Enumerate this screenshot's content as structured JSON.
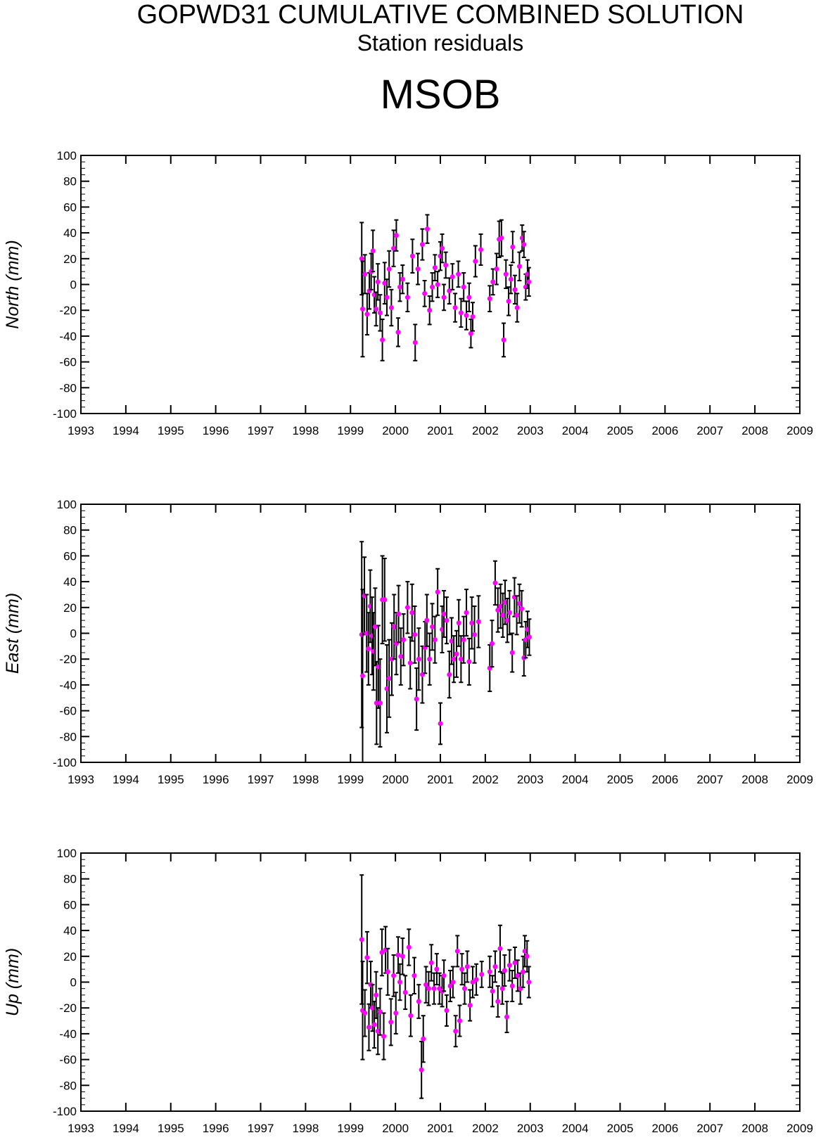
{
  "header": {
    "title": "GOPWD31 CUMULATIVE COMBINED SOLUTION",
    "subtitle": "Station residuals",
    "station": "MSOB"
  },
  "colors": {
    "point": "#ff00ff",
    "errorbar": "#000000",
    "axes": "#000000"
  },
  "chart_data": [
    {
      "type": "scatter",
      "ylabel": "North (mm)",
      "xlim": [
        1993,
        2009
      ],
      "ylim": [
        -100,
        100
      ],
      "xticks": [
        1993,
        1994,
        1995,
        1996,
        1997,
        1998,
        1999,
        2000,
        2001,
        2002,
        2003,
        2004,
        2005,
        2006,
        2007,
        2008,
        2009
      ],
      "yticks": [
        -100,
        -80,
        -60,
        -40,
        -20,
        0,
        20,
        40,
        60,
        80,
        100
      ],
      "grid": false,
      "points": [
        {
          "x": 1999.25,
          "y": 20,
          "e": 28
        },
        {
          "x": 1999.27,
          "y": -19,
          "e": 37
        },
        {
          "x": 1999.32,
          "y": 8,
          "e": 15
        },
        {
          "x": 1999.37,
          "y": -23,
          "e": 16
        },
        {
          "x": 1999.42,
          "y": -5,
          "e": 14
        },
        {
          "x": 1999.46,
          "y": 10,
          "e": 14
        },
        {
          "x": 1999.5,
          "y": 26,
          "e": 16
        },
        {
          "x": 1999.53,
          "y": -8,
          "e": 14
        },
        {
          "x": 1999.57,
          "y": -19,
          "e": 13
        },
        {
          "x": 1999.61,
          "y": 2,
          "e": 14
        },
        {
          "x": 1999.66,
          "y": -22,
          "e": 14
        },
        {
          "x": 1999.71,
          "y": -43,
          "e": 16
        },
        {
          "x": 1999.76,
          "y": 1,
          "e": 16
        },
        {
          "x": 1999.81,
          "y": -10,
          "e": 14
        },
        {
          "x": 1999.86,
          "y": 12,
          "e": 14
        },
        {
          "x": 1999.91,
          "y": -18,
          "e": 14
        },
        {
          "x": 1999.96,
          "y": 28,
          "e": 14
        },
        {
          "x": 2000.02,
          "y": 38,
          "e": 12
        },
        {
          "x": 2000.06,
          "y": -37,
          "e": 11
        },
        {
          "x": 2000.1,
          "y": -2,
          "e": 11
        },
        {
          "x": 2000.16,
          "y": 4,
          "e": 11
        },
        {
          "x": 2000.27,
          "y": -10,
          "e": 11
        },
        {
          "x": 2000.38,
          "y": 22,
          "e": 13
        },
        {
          "x": 2000.44,
          "y": -45,
          "e": 14
        },
        {
          "x": 2000.5,
          "y": 12,
          "e": 12
        },
        {
          "x": 2000.6,
          "y": 31,
          "e": 12
        },
        {
          "x": 2000.65,
          "y": -7,
          "e": 10
        },
        {
          "x": 2000.71,
          "y": 43,
          "e": 11
        },
        {
          "x": 2000.76,
          "y": -20,
          "e": 11
        },
        {
          "x": 2000.82,
          "y": -2,
          "e": 11
        },
        {
          "x": 2000.88,
          "y": 13,
          "e": 10
        },
        {
          "x": 2000.94,
          "y": 0,
          "e": 10
        },
        {
          "x": 2001.0,
          "y": 22,
          "e": 11
        },
        {
          "x": 2001.04,
          "y": 28,
          "e": 11
        },
        {
          "x": 2001.08,
          "y": -10,
          "e": 10
        },
        {
          "x": 2001.12,
          "y": 15,
          "e": 10
        },
        {
          "x": 2001.2,
          "y": -5,
          "e": 10
        },
        {
          "x": 2001.27,
          "y": 6,
          "e": 10
        },
        {
          "x": 2001.33,
          "y": -18,
          "e": 11
        },
        {
          "x": 2001.4,
          "y": 8,
          "e": 10
        },
        {
          "x": 2001.46,
          "y": -22,
          "e": 11
        },
        {
          "x": 2001.52,
          "y": -2,
          "e": 11
        },
        {
          "x": 2001.58,
          "y": -24,
          "e": 11
        },
        {
          "x": 2001.64,
          "y": -10,
          "e": 11
        },
        {
          "x": 2001.68,
          "y": -38,
          "e": 11
        },
        {
          "x": 2001.72,
          "y": -25,
          "e": 11
        },
        {
          "x": 2001.78,
          "y": 18,
          "e": 12
        },
        {
          "x": 2001.9,
          "y": 27,
          "e": 12
        },
        {
          "x": 2002.1,
          "y": -11,
          "e": 10
        },
        {
          "x": 2002.17,
          "y": 2,
          "e": 10
        },
        {
          "x": 2002.25,
          "y": 12,
          "e": 12
        },
        {
          "x": 2002.31,
          "y": 35,
          "e": 14
        },
        {
          "x": 2002.36,
          "y": 36,
          "e": 14
        },
        {
          "x": 2002.41,
          "y": -43,
          "e": 13
        },
        {
          "x": 2002.46,
          "y": 8,
          "e": 11
        },
        {
          "x": 2002.52,
          "y": -13,
          "e": 11
        },
        {
          "x": 2002.57,
          "y": 4,
          "e": 11
        },
        {
          "x": 2002.61,
          "y": 29,
          "e": 12
        },
        {
          "x": 2002.66,
          "y": -4,
          "e": 11
        },
        {
          "x": 2002.71,
          "y": -18,
          "e": 11
        },
        {
          "x": 2002.76,
          "y": 14,
          "e": 11
        },
        {
          "x": 2002.82,
          "y": 36,
          "e": 10
        },
        {
          "x": 2002.86,
          "y": 31,
          "e": 10
        },
        {
          "x": 2002.9,
          "y": -2,
          "e": 10
        },
        {
          "x": 2002.94,
          "y": 8,
          "e": 11
        },
        {
          "x": 2002.97,
          "y": 2,
          "e": 11
        }
      ]
    },
    {
      "type": "scatter",
      "ylabel": "East (mm)",
      "xlim": [
        1993,
        2009
      ],
      "ylim": [
        -100,
        100
      ],
      "xticks": [
        1993,
        1994,
        1995,
        1996,
        1997,
        1998,
        1999,
        2000,
        2001,
        2002,
        2003,
        2004,
        2005,
        2006,
        2007,
        2008,
        2009
      ],
      "yticks": [
        -100,
        -80,
        -60,
        -40,
        -20,
        0,
        20,
        40,
        60,
        80,
        100
      ],
      "grid": false,
      "points": [
        {
          "x": 1999.25,
          "y": -1,
          "e": 72
        },
        {
          "x": 1999.27,
          "y": -33,
          "e": 67
        },
        {
          "x": 1999.31,
          "y": 29,
          "e": 30
        },
        {
          "x": 1999.36,
          "y": 0,
          "e": 30
        },
        {
          "x": 1999.4,
          "y": -12,
          "e": 28
        },
        {
          "x": 1999.44,
          "y": 21,
          "e": 28
        },
        {
          "x": 1999.48,
          "y": -2,
          "e": 30
        },
        {
          "x": 1999.51,
          "y": -14,
          "e": 30
        },
        {
          "x": 1999.55,
          "y": 5,
          "e": 30
        },
        {
          "x": 1999.58,
          "y": -54,
          "e": 32
        },
        {
          "x": 1999.62,
          "y": -26,
          "e": 32
        },
        {
          "x": 1999.66,
          "y": -54,
          "e": 34
        },
        {
          "x": 1999.71,
          "y": 26,
          "e": 34
        },
        {
          "x": 1999.76,
          "y": 26,
          "e": 32
        },
        {
          "x": 1999.81,
          "y": -43,
          "e": 34
        },
        {
          "x": 1999.86,
          "y": -35,
          "e": 30
        },
        {
          "x": 1999.92,
          "y": -20,
          "e": 28
        },
        {
          "x": 1999.97,
          "y": 5,
          "e": 25
        },
        {
          "x": 2000.02,
          "y": -8,
          "e": 24
        },
        {
          "x": 2000.07,
          "y": 15,
          "e": 22
        },
        {
          "x": 2000.12,
          "y": -18,
          "e": 22
        },
        {
          "x": 2000.18,
          "y": -5,
          "e": 20
        },
        {
          "x": 2000.27,
          "y": 20,
          "e": 20
        },
        {
          "x": 2000.33,
          "y": -23,
          "e": 20
        },
        {
          "x": 2000.37,
          "y": 16,
          "e": 22
        },
        {
          "x": 2000.43,
          "y": -1,
          "e": 22
        },
        {
          "x": 2000.47,
          "y": -51,
          "e": 24
        },
        {
          "x": 2000.52,
          "y": -20,
          "e": 24
        },
        {
          "x": 2000.6,
          "y": -32,
          "e": 22
        },
        {
          "x": 2000.66,
          "y": -11,
          "e": 20
        },
        {
          "x": 2000.7,
          "y": 10,
          "e": 20
        },
        {
          "x": 2000.76,
          "y": -20,
          "e": 20
        },
        {
          "x": 2000.82,
          "y": 5,
          "e": 18
        },
        {
          "x": 2000.88,
          "y": -5,
          "e": 18
        },
        {
          "x": 2000.94,
          "y": 32,
          "e": 18
        },
        {
          "x": 2001.0,
          "y": -70,
          "e": 16
        },
        {
          "x": 2001.04,
          "y": 3,
          "e": 18
        },
        {
          "x": 2001.08,
          "y": 15,
          "e": 18
        },
        {
          "x": 2001.14,
          "y": 10,
          "e": 18
        },
        {
          "x": 2001.2,
          "y": -32,
          "e": 18
        },
        {
          "x": 2001.25,
          "y": -6,
          "e": 18
        },
        {
          "x": 2001.3,
          "y": -20,
          "e": 18
        },
        {
          "x": 2001.36,
          "y": -16,
          "e": 18
        },
        {
          "x": 2001.41,
          "y": 8,
          "e": 18
        },
        {
          "x": 2001.46,
          "y": -20,
          "e": 18
        },
        {
          "x": 2001.52,
          "y": -5,
          "e": 18
        },
        {
          "x": 2001.58,
          "y": 16,
          "e": 18
        },
        {
          "x": 2001.64,
          "y": -22,
          "e": 18
        },
        {
          "x": 2001.7,
          "y": 8,
          "e": 20
        },
        {
          "x": 2001.76,
          "y": -1,
          "e": 22
        },
        {
          "x": 2001.85,
          "y": 9,
          "e": 20
        },
        {
          "x": 2002.1,
          "y": -27,
          "e": 18
        },
        {
          "x": 2002.15,
          "y": -8,
          "e": 18
        },
        {
          "x": 2002.22,
          "y": 39,
          "e": 17
        },
        {
          "x": 2002.28,
          "y": 18,
          "e": 17
        },
        {
          "x": 2002.34,
          "y": 21,
          "e": 17
        },
        {
          "x": 2002.39,
          "y": 14,
          "e": 17
        },
        {
          "x": 2002.44,
          "y": 24,
          "e": 17
        },
        {
          "x": 2002.49,
          "y": 10,
          "e": 17
        },
        {
          "x": 2002.54,
          "y": 16,
          "e": 17
        },
        {
          "x": 2002.6,
          "y": -15,
          "e": 15
        },
        {
          "x": 2002.65,
          "y": 28,
          "e": 15
        },
        {
          "x": 2002.7,
          "y": 14,
          "e": 15
        },
        {
          "x": 2002.76,
          "y": 23,
          "e": 15
        },
        {
          "x": 2002.81,
          "y": 19,
          "e": 14
        },
        {
          "x": 2002.86,
          "y": -19,
          "e": 14
        },
        {
          "x": 2002.9,
          "y": -5,
          "e": 14
        },
        {
          "x": 2002.94,
          "y": 3,
          "e": 14
        },
        {
          "x": 2002.98,
          "y": -3,
          "e": 14
        }
      ]
    },
    {
      "type": "scatter",
      "ylabel": "Up (mm)",
      "xlim": [
        1993,
        2009
      ],
      "ylim": [
        -100,
        100
      ],
      "xticks": [
        1993,
        1994,
        1995,
        1996,
        1997,
        1998,
        1999,
        2000,
        2001,
        2002,
        2003,
        2004,
        2005,
        2006,
        2007,
        2008,
        2009
      ],
      "yticks": [
        -100,
        -80,
        -60,
        -40,
        -20,
        0,
        20,
        40,
        60,
        80,
        100
      ],
      "grid": false,
      "points": [
        {
          "x": 1999.25,
          "y": 33,
          "e": 50
        },
        {
          "x": 1999.27,
          "y": -22,
          "e": 38
        },
        {
          "x": 1999.32,
          "y": -24,
          "e": 18
        },
        {
          "x": 1999.37,
          "y": 19,
          "e": 20
        },
        {
          "x": 1999.41,
          "y": -35,
          "e": 18
        },
        {
          "x": 1999.45,
          "y": -2,
          "e": 18
        },
        {
          "x": 1999.49,
          "y": -20,
          "e": 18
        },
        {
          "x": 1999.53,
          "y": -33,
          "e": 18
        },
        {
          "x": 1999.57,
          "y": -10,
          "e": 18
        },
        {
          "x": 1999.61,
          "y": -38,
          "e": 18
        },
        {
          "x": 1999.66,
          "y": -23,
          "e": 18
        },
        {
          "x": 1999.7,
          "y": 23,
          "e": 18
        },
        {
          "x": 1999.74,
          "y": -42,
          "e": 18
        },
        {
          "x": 1999.78,
          "y": 25,
          "e": 18
        },
        {
          "x": 1999.83,
          "y": 8,
          "e": 18
        },
        {
          "x": 1999.9,
          "y": -31,
          "e": 18
        },
        {
          "x": 1999.96,
          "y": 5,
          "e": 16
        },
        {
          "x": 2000.01,
          "y": -24,
          "e": 16
        },
        {
          "x": 2000.06,
          "y": 21,
          "e": 14
        },
        {
          "x": 2000.1,
          "y": 0,
          "e": 14
        },
        {
          "x": 2000.16,
          "y": 20,
          "e": 14
        },
        {
          "x": 2000.22,
          "y": -8,
          "e": 13
        },
        {
          "x": 2000.3,
          "y": 27,
          "e": 14
        },
        {
          "x": 2000.34,
          "y": -26,
          "e": 16
        },
        {
          "x": 2000.42,
          "y": 5,
          "e": 14
        },
        {
          "x": 2000.52,
          "y": -15,
          "e": 13
        },
        {
          "x": 2000.58,
          "y": -68,
          "e": 22
        },
        {
          "x": 2000.62,
          "y": -44,
          "e": 18
        },
        {
          "x": 2000.68,
          "y": -2,
          "e": 14
        },
        {
          "x": 2000.74,
          "y": -5,
          "e": 13
        },
        {
          "x": 2000.8,
          "y": 15,
          "e": 14
        },
        {
          "x": 2000.86,
          "y": -5,
          "e": 12
        },
        {
          "x": 2000.92,
          "y": 10,
          "e": 12
        },
        {
          "x": 2000.98,
          "y": -5,
          "e": 12
        },
        {
          "x": 2001.04,
          "y": -7,
          "e": 12
        },
        {
          "x": 2001.08,
          "y": 5,
          "e": 12
        },
        {
          "x": 2001.14,
          "y": -22,
          "e": 12
        },
        {
          "x": 2001.22,
          "y": -3,
          "e": 12
        },
        {
          "x": 2001.28,
          "y": 0,
          "e": 12
        },
        {
          "x": 2001.34,
          "y": -38,
          "e": 12
        },
        {
          "x": 2001.38,
          "y": 24,
          "e": 12
        },
        {
          "x": 2001.43,
          "y": -30,
          "e": 12
        },
        {
          "x": 2001.48,
          "y": 10,
          "e": 12
        },
        {
          "x": 2001.54,
          "y": -5,
          "e": 12
        },
        {
          "x": 2001.6,
          "y": 12,
          "e": 12
        },
        {
          "x": 2001.66,
          "y": -18,
          "e": 12
        },
        {
          "x": 2001.72,
          "y": 0,
          "e": 12
        },
        {
          "x": 2001.8,
          "y": 2,
          "e": 12
        },
        {
          "x": 2001.92,
          "y": 6,
          "e": 10
        },
        {
          "x": 2002.1,
          "y": 8,
          "e": 12
        },
        {
          "x": 2002.16,
          "y": -7,
          "e": 12
        },
        {
          "x": 2002.22,
          "y": 12,
          "e": 12
        },
        {
          "x": 2002.28,
          "y": -15,
          "e": 12
        },
        {
          "x": 2002.33,
          "y": 26,
          "e": 18
        },
        {
          "x": 2002.38,
          "y": -5,
          "e": 12
        },
        {
          "x": 2002.43,
          "y": 9,
          "e": 12
        },
        {
          "x": 2002.48,
          "y": -27,
          "e": 12
        },
        {
          "x": 2002.54,
          "y": 13,
          "e": 12
        },
        {
          "x": 2002.6,
          "y": -3,
          "e": 12
        },
        {
          "x": 2002.66,
          "y": 15,
          "e": 12
        },
        {
          "x": 2002.72,
          "y": 5,
          "e": 12
        },
        {
          "x": 2002.78,
          "y": -5,
          "e": 12
        },
        {
          "x": 2002.84,
          "y": 8,
          "e": 12
        },
        {
          "x": 2002.88,
          "y": 24,
          "e": 12
        },
        {
          "x": 2002.93,
          "y": 20,
          "e": 12
        },
        {
          "x": 2002.97,
          "y": 0,
          "e": 12
        }
      ]
    }
  ]
}
